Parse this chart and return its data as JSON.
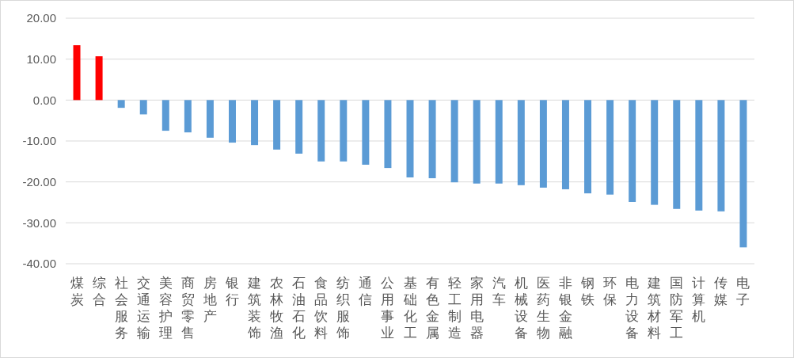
{
  "chart_data": {
    "type": "bar",
    "categories": [
      "煤炭",
      "综合",
      "社会服务",
      "交通运输",
      "美容护理",
      "商贸零售",
      "房地产",
      "银行",
      "建筑装饰",
      "农林牧渔",
      "石油石化",
      "食品饮料",
      "纺织服饰",
      "通信",
      "公用事业",
      "基础化工",
      "有色金属",
      "轻工制造",
      "家用电器",
      "汽车",
      "机械设备",
      "医药生物",
      "非银金融",
      "钢铁",
      "环保",
      "电力设备",
      "建筑材料",
      "国防军工",
      "计算机",
      "传媒",
      "电子"
    ],
    "values": [
      13.4,
      10.7,
      -1.9,
      -3.5,
      -7.5,
      -7.9,
      -9.2,
      -10.4,
      -11.0,
      -12.1,
      -13.1,
      -15.0,
      -15.0,
      -15.8,
      -16.6,
      -18.9,
      -19.1,
      -20.1,
      -20.4,
      -20.4,
      -20.8,
      -21.4,
      -21.8,
      -22.8,
      -23.1,
      -24.9,
      -25.6,
      -26.6,
      -27.0,
      -27.2,
      -36.0
    ],
    "colors": [
      "#ff0000",
      "#ff0000",
      "#5b9bd5",
      "#5b9bd5",
      "#5b9bd5",
      "#5b9bd5",
      "#5b9bd5",
      "#5b9bd5",
      "#5b9bd5",
      "#5b9bd5",
      "#5b9bd5",
      "#5b9bd5",
      "#5b9bd5",
      "#5b9bd5",
      "#5b9bd5",
      "#5b9bd5",
      "#5b9bd5",
      "#5b9bd5",
      "#5b9bd5",
      "#5b9bd5",
      "#5b9bd5",
      "#5b9bd5",
      "#5b9bd5",
      "#5b9bd5",
      "#5b9bd5",
      "#5b9bd5",
      "#5b9bd5",
      "#5b9bd5",
      "#5b9bd5",
      "#5b9bd5",
      "#5b9bd5"
    ],
    "ylim": [
      -40,
      20
    ],
    "yticks": [
      {
        "value": -40,
        "label": "-40.00"
      },
      {
        "value": -30,
        "label": "-30.00"
      },
      {
        "value": -20,
        "label": "-20.00"
      },
      {
        "value": -10,
        "label": "-10.00"
      },
      {
        "value": 0,
        "label": "0.00"
      },
      {
        "value": 10,
        "label": "10.00"
      },
      {
        "value": 20,
        "label": "20.00"
      }
    ],
    "grid": "y"
  }
}
